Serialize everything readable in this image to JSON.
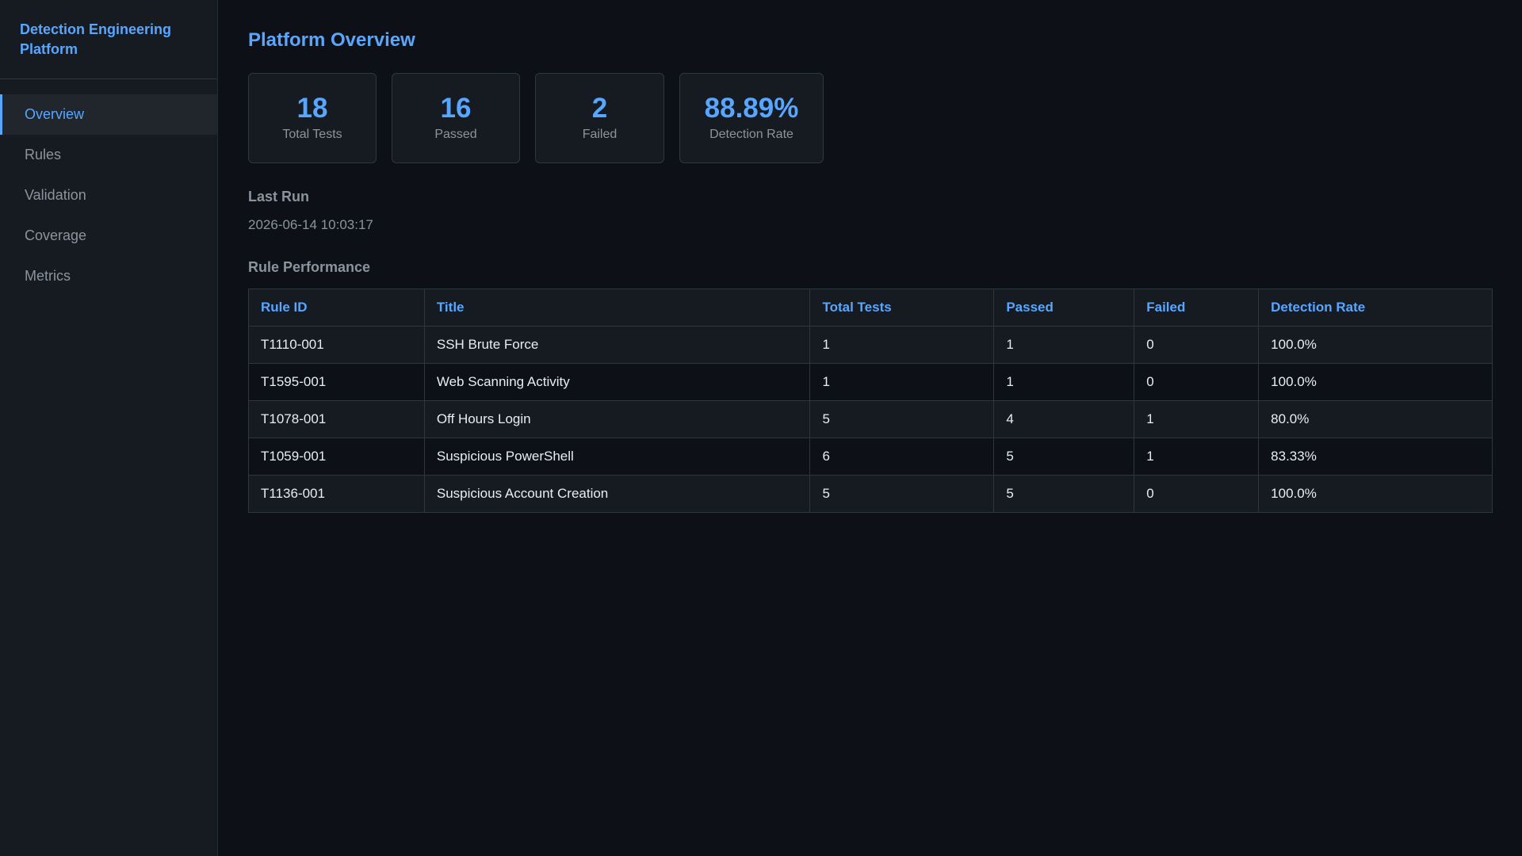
{
  "sidebar": {
    "brand": "Detection Engineering Platform",
    "nav": [
      "Overview",
      "Rules",
      "Validation",
      "Coverage",
      "Metrics"
    ],
    "active": 0
  },
  "main": {
    "title": "Platform Overview",
    "stats": [
      {
        "value": "18",
        "label": "Total Tests"
      },
      {
        "value": "16",
        "label": "Passed"
      },
      {
        "value": "2",
        "label": "Failed"
      },
      {
        "value": "88.89%",
        "label": "Detection Rate"
      }
    ],
    "last_run": {
      "heading": "Last Run",
      "time": "2026-06-14 10:03:17"
    },
    "table": {
      "heading": "Rule Performance",
      "columns": [
        "Rule ID",
        "Title",
        "Total Tests",
        "Passed",
        "Failed",
        "Detection Rate"
      ],
      "rows": [
        [
          "T1110-001",
          "SSH Brute Force",
          "1",
          "1",
          "0",
          "100.0%"
        ],
        [
          "T1595-001",
          "Web Scanning Activity",
          "1",
          "1",
          "0",
          "100.0%"
        ],
        [
          "T1078-001",
          "Off Hours Login",
          "5",
          "4",
          "1",
          "80.0%"
        ],
        [
          "T1059-001",
          "Suspicious PowerShell",
          "6",
          "5",
          "1",
          "83.33%"
        ],
        [
          "T1136-001",
          "Suspicious Account Creation",
          "5",
          "5",
          "0",
          "100.0%"
        ]
      ]
    }
  }
}
